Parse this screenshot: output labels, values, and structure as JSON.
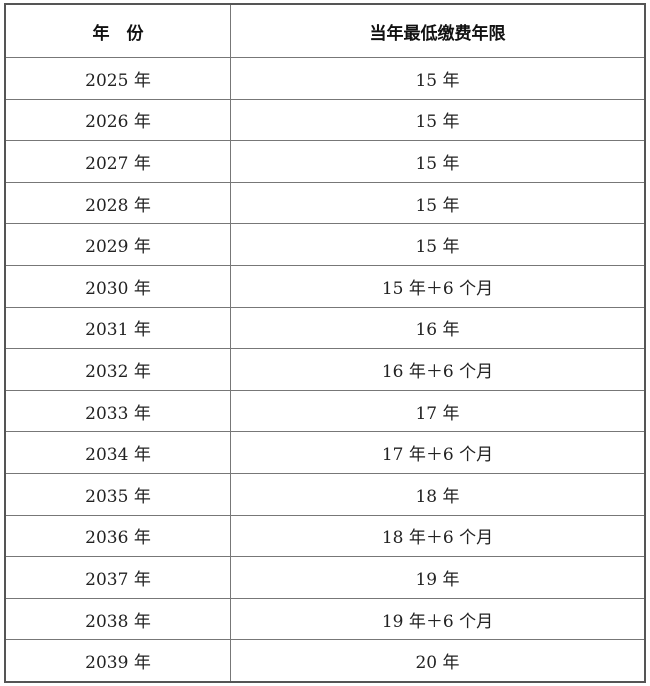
{
  "table": {
    "headers": [
      "年　份",
      "当年最低缴费年限"
    ],
    "rows": [
      [
        "2025 年",
        "15 年"
      ],
      [
        "2026 年",
        "15 年"
      ],
      [
        "2027 年",
        "15 年"
      ],
      [
        "2028 年",
        "15 年"
      ],
      [
        "2029 年",
        "15 年"
      ],
      [
        "2030 年",
        "15 年＋6 个月"
      ],
      [
        "2031 年",
        "16 年"
      ],
      [
        "2032 年",
        "16 年＋6 个月"
      ],
      [
        "2033 年",
        "17 年"
      ],
      [
        "2034 年",
        "17 年＋6 个月"
      ],
      [
        "2035 年",
        "18 年"
      ],
      [
        "2036 年",
        "18 年＋6 个月"
      ],
      [
        "2037 年",
        "19 年"
      ],
      [
        "2038 年",
        "19 年＋6 个月"
      ],
      [
        "2039 年",
        "20 年"
      ]
    ]
  }
}
